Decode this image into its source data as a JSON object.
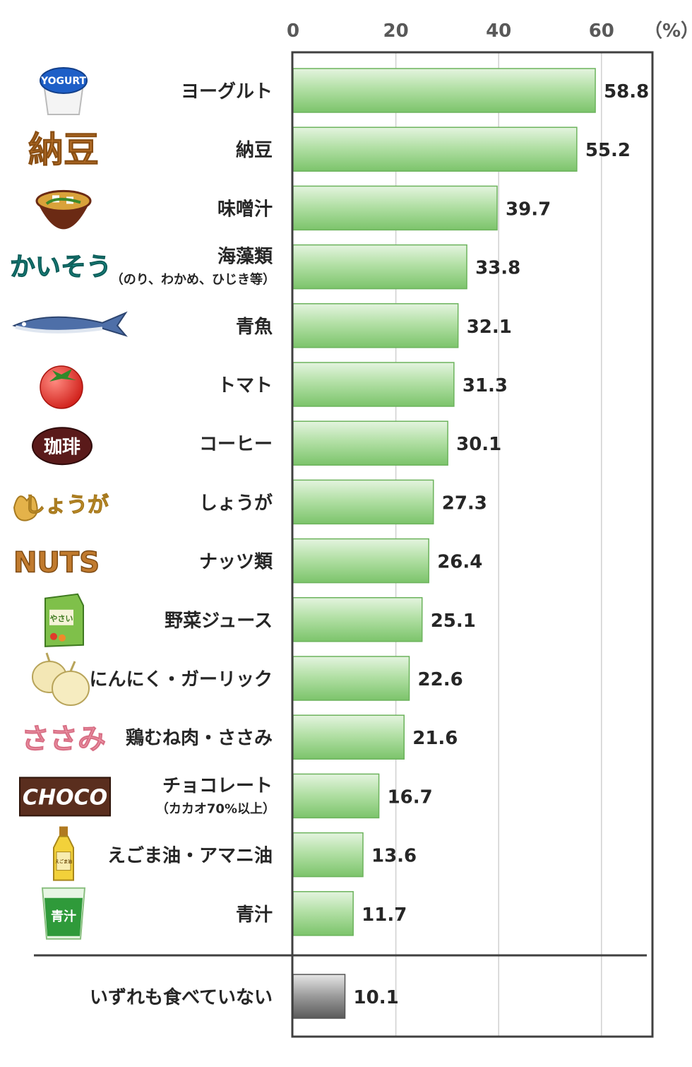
{
  "chart_data": {
    "type": "bar",
    "orientation": "horizontal",
    "unit_label": "（%）",
    "xlim": [
      0,
      70
    ],
    "ticks": [
      0,
      20,
      40,
      60
    ],
    "tick_labels": [
      "0",
      "20",
      "40",
      "60"
    ],
    "grid": true,
    "series_color": "#8ccf7e",
    "none_color": "#808080",
    "categories": [
      {
        "label": "ヨーグルト",
        "value": 58.8,
        "value_label": "58.8",
        "icon": "yogurt-icon",
        "icon_text": "YOGURT"
      },
      {
        "label": "納豆",
        "value": 55.2,
        "value_label": "55.2",
        "icon": "natto-icon",
        "icon_text": "納豆"
      },
      {
        "label": "味噌汁",
        "value": 39.7,
        "value_label": "39.7",
        "icon": "miso-soup-icon"
      },
      {
        "label": "海藻類",
        "sublabel": "（のり、わかめ、ひじき等）",
        "value": 33.8,
        "value_label": "33.8",
        "icon": "seaweed-icon",
        "icon_text": "かいそう"
      },
      {
        "label": "青魚",
        "value": 32.1,
        "value_label": "32.1",
        "icon": "fish-icon"
      },
      {
        "label": "トマト",
        "value": 31.3,
        "value_label": "31.3",
        "icon": "tomato-icon"
      },
      {
        "label": "コーヒー",
        "value": 30.1,
        "value_label": "30.1",
        "icon": "coffee-icon",
        "icon_text": "珈琲"
      },
      {
        "label": "しょうが",
        "value": 27.3,
        "value_label": "27.3",
        "icon": "ginger-icon",
        "icon_text": "しょうが"
      },
      {
        "label": "ナッツ類",
        "value": 26.4,
        "value_label": "26.4",
        "icon": "nuts-icon",
        "icon_text": "NUTS"
      },
      {
        "label": "野菜ジュース",
        "value": 25.1,
        "value_label": "25.1",
        "icon": "vegetable-juice-icon",
        "icon_text": "やさい"
      },
      {
        "label": "にんにく・ガーリック",
        "value": 22.6,
        "value_label": "22.6",
        "icon": "garlic-icon"
      },
      {
        "label": "鶏むね肉・ささみ",
        "value": 21.6,
        "value_label": "21.6",
        "icon": "sasami-icon",
        "icon_text": "ささみ"
      },
      {
        "label": "チョコレート",
        "sublabel": "（カカオ70%以上）",
        "value": 16.7,
        "value_label": "16.7",
        "icon": "chocolate-icon",
        "icon_text": "CHOCO"
      },
      {
        "label": "えごま油・アマニ油",
        "value": 13.6,
        "value_label": "13.6",
        "icon": "oil-bottle-icon",
        "icon_text": "えごま油"
      },
      {
        "label": "青汁",
        "value": 11.7,
        "value_label": "11.7",
        "icon": "aojiru-icon",
        "icon_text": "青汁"
      }
    ],
    "none_category": {
      "label": "いずれも食べていない",
      "value": 10.1,
      "value_label": "10.1"
    }
  }
}
